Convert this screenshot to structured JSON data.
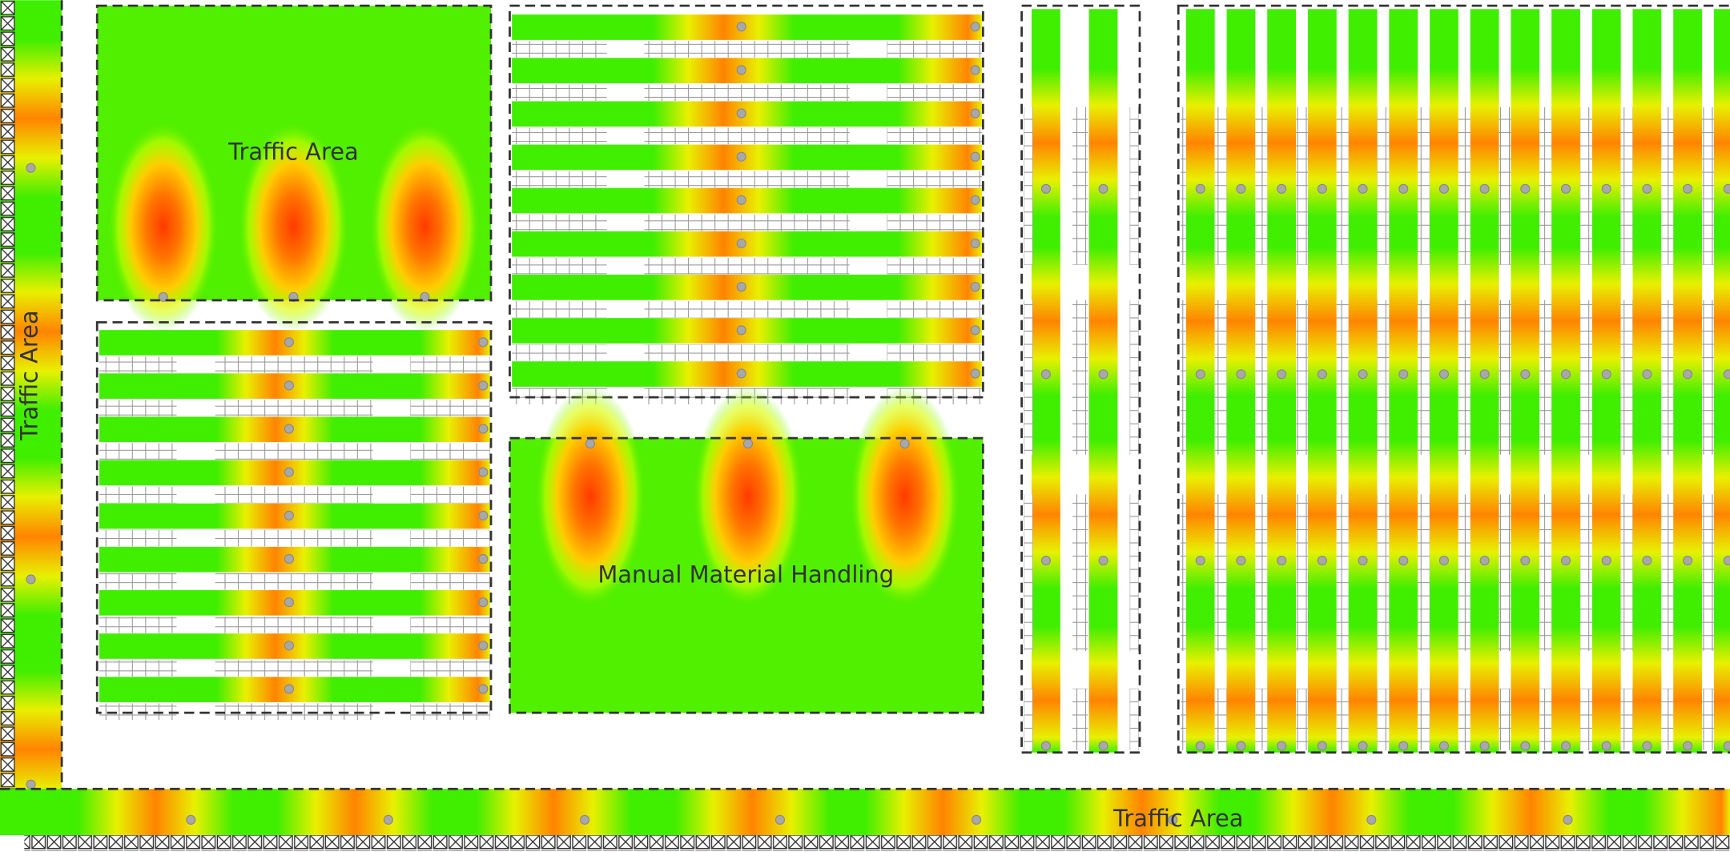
{
  "zones": [
    {
      "label": "Traffic Area"
    },
    {
      "label": "Traffic Area"
    },
    {
      "label": "Manual Material Handling"
    },
    {
      "label": "Traffic Area"
    }
  ]
}
